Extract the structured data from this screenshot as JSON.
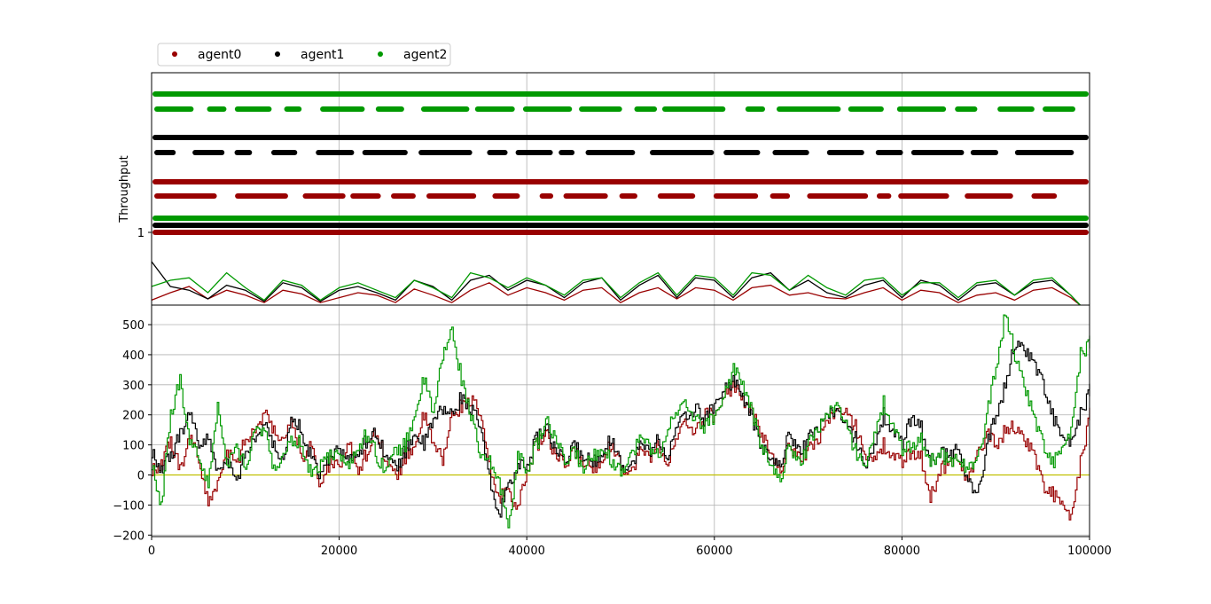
{
  "chart_data": [
    {
      "type": "scatter",
      "title": "",
      "ylabel": "Throughput",
      "xlim": [
        0,
        100000
      ],
      "y_ticks": [
        1
      ],
      "grid": true,
      "legend": {
        "placement": "top-left",
        "entries": [
          {
            "name": "agent0",
            "color": "#990000"
          },
          {
            "name": "agent1",
            "color": "#000000"
          },
          {
            "name": "agent2",
            "color": "#009900"
          }
        ]
      },
      "dot_rows": [
        {
          "series": "agent2",
          "level": "top",
          "dense": true
        },
        {
          "series": "agent2",
          "level": "top-sparse",
          "dense": false
        },
        {
          "series": "agent1",
          "level": "upper",
          "dense": true
        },
        {
          "series": "agent1",
          "level": "upper-sparse",
          "dense": false
        },
        {
          "series": "agent0",
          "level": "middle",
          "dense": true
        },
        {
          "series": "agent0",
          "level": "middle-sparse",
          "dense": false
        },
        {
          "series": "agent2",
          "level": "near-1",
          "dense": true
        },
        {
          "series": "agent1",
          "level": "near-1",
          "dense": true
        },
        {
          "series": "agent0",
          "level": "near-1",
          "dense": true
        }
      ],
      "bottom_lines": [
        {
          "name": "agent0",
          "color": "#990000",
          "x": [
            0,
            2000,
            4000,
            6000,
            8000,
            10000,
            12000,
            14000,
            16000,
            18000,
            20000,
            22000,
            24000,
            26000,
            28000,
            30000,
            32000,
            34000,
            36000,
            38000,
            40000,
            42000,
            44000,
            46000,
            48000,
            50000,
            52000,
            54000,
            56000,
            58000,
            60000,
            62000,
            64000,
            66000,
            68000,
            70000,
            72000,
            74000,
            76000,
            78000,
            80000,
            82000,
            84000,
            86000,
            88000,
            90000,
            92000,
            94000,
            96000,
            98000
          ],
          "y": [
            0.04,
            0.1,
            0.15,
            0.05,
            0.12,
            0.08,
            0.02,
            0.12,
            0.09,
            0.02,
            0.06,
            0.1,
            0.08,
            0.02,
            0.13,
            0.08,
            0.02,
            0.12,
            0.18,
            0.08,
            0.14,
            0.1,
            0.04,
            0.12,
            0.14,
            0.02,
            0.1,
            0.14,
            0.05,
            0.14,
            0.12,
            0.04,
            0.14,
            0.16,
            0.08,
            0.1,
            0.06,
            0.05,
            0.1,
            0.14,
            0.04,
            0.12,
            0.1,
            0.02,
            0.08,
            0.1,
            0.04,
            0.12,
            0.14,
            0.06
          ]
        },
        {
          "name": "agent1",
          "color": "#000000",
          "x": [
            0,
            2000,
            4000,
            6000,
            8000,
            10000,
            12000,
            14000,
            16000,
            18000,
            20000,
            22000,
            24000,
            26000,
            28000,
            30000,
            32000,
            34000,
            36000,
            38000,
            40000,
            42000,
            44000,
            46000,
            48000,
            50000,
            52000,
            54000,
            56000,
            58000,
            60000,
            62000,
            64000,
            66000,
            68000,
            70000,
            72000,
            74000,
            76000,
            78000,
            80000,
            82000,
            84000,
            86000,
            88000,
            90000,
            92000,
            94000,
            96000,
            98000
          ],
          "y": [
            0.35,
            0.15,
            0.12,
            0.05,
            0.16,
            0.12,
            0.03,
            0.18,
            0.14,
            0.03,
            0.12,
            0.15,
            0.1,
            0.04,
            0.2,
            0.15,
            0.04,
            0.2,
            0.24,
            0.12,
            0.2,
            0.16,
            0.06,
            0.18,
            0.22,
            0.04,
            0.16,
            0.24,
            0.06,
            0.22,
            0.2,
            0.06,
            0.22,
            0.26,
            0.12,
            0.2,
            0.1,
            0.06,
            0.16,
            0.2,
            0.06,
            0.2,
            0.16,
            0.04,
            0.16,
            0.18,
            0.08,
            0.18,
            0.2,
            0.08
          ]
        },
        {
          "name": "agent2",
          "color": "#009900",
          "x": [
            0,
            2000,
            4000,
            6000,
            8000,
            10000,
            12000,
            14000,
            16000,
            18000,
            20000,
            22000,
            24000,
            26000,
            28000,
            30000,
            32000,
            34000,
            36000,
            38000,
            40000,
            42000,
            44000,
            46000,
            48000,
            50000,
            52000,
            54000,
            56000,
            58000,
            60000,
            62000,
            64000,
            66000,
            68000,
            70000,
            72000,
            74000,
            76000,
            78000,
            80000,
            82000,
            84000,
            86000,
            88000,
            90000,
            92000,
            94000,
            96000,
            98000
          ],
          "y": [
            0.15,
            0.2,
            0.22,
            0.1,
            0.26,
            0.14,
            0.04,
            0.2,
            0.16,
            0.04,
            0.14,
            0.18,
            0.12,
            0.06,
            0.2,
            0.14,
            0.06,
            0.26,
            0.22,
            0.14,
            0.22,
            0.16,
            0.08,
            0.2,
            0.22,
            0.06,
            0.18,
            0.26,
            0.08,
            0.24,
            0.22,
            0.08,
            0.26,
            0.24,
            0.12,
            0.24,
            0.14,
            0.08,
            0.2,
            0.22,
            0.08,
            0.18,
            0.18,
            0.06,
            0.18,
            0.2,
            0.08,
            0.2,
            0.22,
            0.08
          ]
        }
      ]
    },
    {
      "type": "line",
      "xlim": [
        0,
        100000
      ],
      "ylim": [
        -205,
        565
      ],
      "x_ticks": [
        0,
        20000,
        40000,
        60000,
        80000,
        100000
      ],
      "x_tick_labels": [
        "0",
        "20000",
        "40000",
        "60000",
        "80000",
        "100000"
      ],
      "y_ticks": [
        -200,
        -100,
        0,
        100,
        200,
        300,
        400,
        500
      ],
      "y_tick_labels": [
        "−200",
        "−100",
        "0",
        "100",
        "200",
        "300",
        "400",
        "500"
      ],
      "grid": true,
      "baseline": {
        "y": 0,
        "color": "#bfbf00"
      },
      "series": [
        {
          "name": "agent0",
          "color": "#990000",
          "x": [
            0,
            1000,
            2000,
            3000,
            4000,
            5000,
            6000,
            7000,
            8000,
            9000,
            10000,
            11000,
            12000,
            13000,
            14000,
            15000,
            16000,
            17000,
            18000,
            19000,
            20000,
            21000,
            22000,
            23000,
            24000,
            25000,
            26000,
            27000,
            28000,
            29000,
            30000,
            31000,
            32000,
            33000,
            34000,
            35000,
            36000,
            37000,
            38000,
            39000,
            40000,
            41000,
            42000,
            43000,
            44000,
            45000,
            46000,
            47000,
            48000,
            49000,
            50000,
            51000,
            52000,
            53000,
            54000,
            55000,
            56000,
            57000,
            58000,
            59000,
            60000,
            61000,
            62000,
            63000,
            64000,
            65000,
            66000,
            67000,
            68000,
            69000,
            70000,
            71000,
            72000,
            73000,
            74000,
            75000,
            76000,
            77000,
            78000,
            79000,
            80000,
            81000,
            82000,
            83000,
            84000,
            85000,
            86000,
            87000,
            88000,
            89000,
            90000,
            91000,
            92000,
            93000,
            94000,
            95000,
            96000,
            97000,
            98000,
            99000,
            100000
          ],
          "y": [
            20,
            40,
            110,
            20,
            120,
            50,
            -100,
            -20,
            90,
            40,
            120,
            150,
            200,
            150,
            110,
            180,
            60,
            100,
            -40,
            40,
            40,
            100,
            20,
            80,
            150,
            40,
            -10,
            60,
            100,
            200,
            100,
            50,
            200,
            230,
            250,
            200,
            20,
            -80,
            -40,
            -120,
            20,
            100,
            140,
            60,
            30,
            80,
            40,
            20,
            60,
            100,
            40,
            0,
            80,
            60,
            100,
            40,
            120,
            180,
            140,
            200,
            200,
            260,
            300,
            250,
            200,
            140,
            60,
            20,
            100,
            60,
            80,
            120,
            180,
            220,
            200,
            160,
            80,
            40,
            100,
            60,
            40,
            80,
            60,
            -80,
            20,
            40,
            60,
            -20,
            60,
            140,
            100,
            150,
            160,
            120,
            80,
            -40,
            -60,
            -100,
            -150,
            40,
            200
          ]
        },
        {
          "name": "agent1",
          "color": "#000000",
          "x": [
            0,
            1000,
            2000,
            3000,
            4000,
            5000,
            6000,
            7000,
            8000,
            9000,
            10000,
            11000,
            12000,
            13000,
            14000,
            15000,
            16000,
            17000,
            18000,
            19000,
            20000,
            21000,
            22000,
            23000,
            24000,
            25000,
            26000,
            27000,
            28000,
            29000,
            30000,
            31000,
            32000,
            33000,
            34000,
            35000,
            36000,
            37000,
            38000,
            39000,
            40000,
            41000,
            42000,
            43000,
            44000,
            45000,
            46000,
            47000,
            48000,
            49000,
            50000,
            51000,
            52000,
            53000,
            54000,
            55000,
            56000,
            57000,
            58000,
            59000,
            60000,
            61000,
            62000,
            63000,
            64000,
            65000,
            66000,
            67000,
            68000,
            69000,
            70000,
            71000,
            72000,
            73000,
            74000,
            75000,
            76000,
            77000,
            78000,
            79000,
            80000,
            81000,
            82000,
            83000,
            84000,
            85000,
            86000,
            87000,
            88000,
            89000,
            90000,
            91000,
            92000,
            93000,
            94000,
            95000,
            96000,
            97000,
            98000,
            99000,
            100000
          ],
          "y": [
            80,
            20,
            60,
            140,
            200,
            100,
            120,
            20,
            60,
            -20,
            80,
            120,
            160,
            100,
            40,
            200,
            140,
            60,
            0,
            60,
            100,
            40,
            80,
            120,
            140,
            60,
            20,
            80,
            140,
            100,
            180,
            220,
            200,
            260,
            220,
            160,
            -20,
            -140,
            -20,
            20,
            40,
            120,
            160,
            80,
            40,
            100,
            60,
            40,
            80,
            120,
            40,
            20,
            100,
            80,
            120,
            60,
            160,
            200,
            220,
            180,
            240,
            280,
            320,
            260,
            180,
            100,
            40,
            40,
            140,
            80,
            120,
            160,
            200,
            220,
            160,
            120,
            40,
            80,
            200,
            140,
            100,
            200,
            160,
            40,
            80,
            60,
            100,
            -20,
            -80,
            100,
            200,
            300,
            440,
            420,
            380,
            300,
            200,
            120,
            100,
            200,
            280
          ]
        },
        {
          "name": "agent2",
          "color": "#009900",
          "x": [
            0,
            1000,
            2000,
            3000,
            4000,
            5000,
            6000,
            7000,
            8000,
            9000,
            10000,
            11000,
            12000,
            13000,
            14000,
            15000,
            16000,
            17000,
            18000,
            19000,
            20000,
            21000,
            22000,
            23000,
            24000,
            25000,
            26000,
            27000,
            28000,
            29000,
            30000,
            31000,
            32000,
            33000,
            34000,
            35000,
            36000,
            37000,
            38000,
            39000,
            40000,
            41000,
            42000,
            43000,
            44000,
            45000,
            46000,
            47000,
            48000,
            49000,
            50000,
            51000,
            52000,
            53000,
            54000,
            55000,
            56000,
            57000,
            58000,
            59000,
            60000,
            61000,
            62000,
            63000,
            64000,
            65000,
            66000,
            67000,
            68000,
            69000,
            70000,
            71000,
            72000,
            73000,
            74000,
            75000,
            76000,
            77000,
            78000,
            79000,
            80000,
            81000,
            82000,
            83000,
            84000,
            85000,
            86000,
            87000,
            88000,
            89000,
            90000,
            91000,
            92000,
            93000,
            94000,
            95000,
            96000,
            97000,
            98000,
            99000,
            100000
          ],
          "y": [
            40,
            -100,
            200,
            320,
            100,
            60,
            -40,
            240,
            40,
            100,
            20,
            160,
            140,
            20,
            60,
            120,
            100,
            0,
            40,
            60,
            80,
            20,
            100,
            140,
            60,
            20,
            80,
            100,
            200,
            320,
            200,
            400,
            480,
            320,
            200,
            60,
            40,
            -20,
            -170,
            60,
            20,
            100,
            180,
            120,
            40,
            80,
            20,
            60,
            100,
            40,
            20,
            60,
            120,
            100,
            60,
            160,
            200,
            240,
            180,
            160,
            200,
            260,
            360,
            300,
            200,
            100,
            20,
            -10,
            100,
            40,
            100,
            160,
            200,
            240,
            160,
            80,
            40,
            120,
            240,
            160,
            80,
            100,
            120,
            40,
            80,
            40,
            60,
            20,
            40,
            200,
            360,
            540,
            400,
            300,
            200,
            100,
            40,
            80,
            140,
            400,
            440
          ]
        }
      ]
    }
  ]
}
